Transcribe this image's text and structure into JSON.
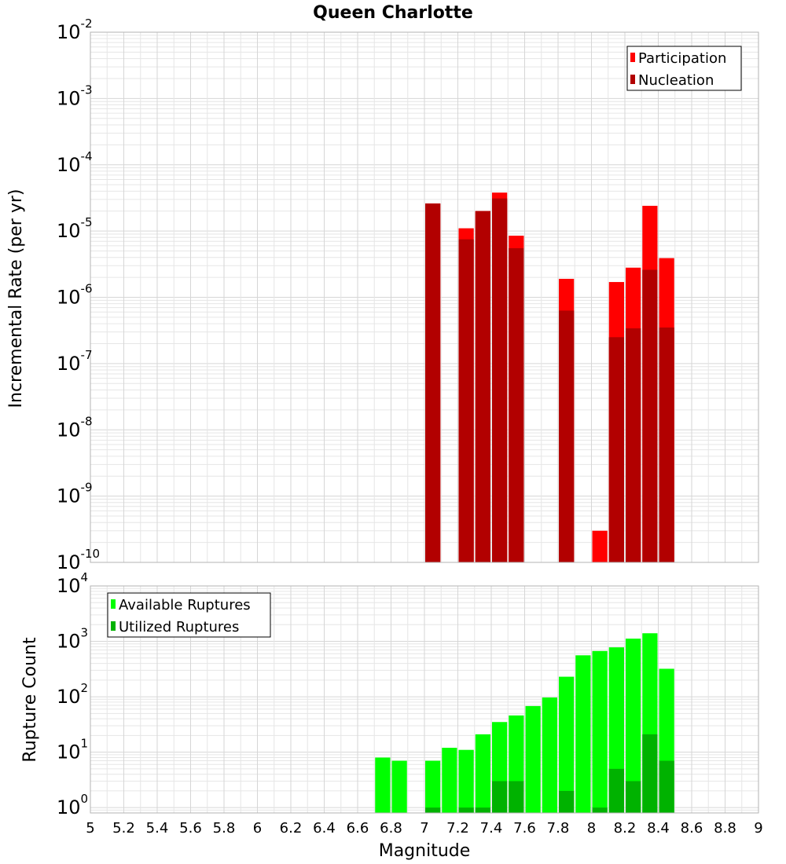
{
  "chart_data": [
    {
      "type": "bar",
      "title": "Queen Charlotte",
      "xlabel": "",
      "ylabel": "Incremental Rate (per yr)",
      "y_scale": "log",
      "ylim": [
        1e-10,
        0.01
      ],
      "xlim": [
        5,
        9
      ],
      "bar_width": 0.1,
      "legend_position": "top-right",
      "y_ticks": [
        {
          "base": "10",
          "exp": "-10"
        },
        {
          "base": "10",
          "exp": "-9"
        },
        {
          "base": "10",
          "exp": "-8"
        },
        {
          "base": "10",
          "exp": "-7"
        },
        {
          "base": "10",
          "exp": "-6"
        },
        {
          "base": "10",
          "exp": "-5"
        },
        {
          "base": "10",
          "exp": "-4"
        },
        {
          "base": "10",
          "exp": "-3"
        },
        {
          "base": "10",
          "exp": "-2"
        }
      ],
      "series": [
        {
          "name": "Participation",
          "color": "#ff0000",
          "points": [
            {
              "x": 7.05,
              "y": 2.6e-05
            },
            {
              "x": 7.25,
              "y": 1.1e-05
            },
            {
              "x": 7.35,
              "y": 2e-05
            },
            {
              "x": 7.45,
              "y": 3.8e-05
            },
            {
              "x": 7.55,
              "y": 8.5e-06
            },
            {
              "x": 7.85,
              "y": 1.9e-06
            },
            {
              "x": 8.05,
              "y": 3e-10
            },
            {
              "x": 8.15,
              "y": 1.7e-06
            },
            {
              "x": 8.25,
              "y": 2.8e-06
            },
            {
              "x": 8.35,
              "y": 2.4e-05
            },
            {
              "x": 8.45,
              "y": 3.9e-06
            }
          ]
        },
        {
          "name": "Nucleation",
          "color": "#b20000",
          "points": [
            {
              "x": 7.05,
              "y": 2.6e-05
            },
            {
              "x": 7.25,
              "y": 7.5e-06
            },
            {
              "x": 7.35,
              "y": 2e-05
            },
            {
              "x": 7.45,
              "y": 3.1e-05
            },
            {
              "x": 7.55,
              "y": 5.5e-06
            },
            {
              "x": 7.85,
              "y": 6.3e-07
            },
            {
              "x": 8.15,
              "y": 2.5e-07
            },
            {
              "x": 8.25,
              "y": 3.4e-07
            },
            {
              "x": 8.35,
              "y": 2.6e-06
            },
            {
              "x": 8.45,
              "y": 3.5e-07
            }
          ]
        }
      ]
    },
    {
      "type": "bar",
      "title": "",
      "xlabel": "Magnitude",
      "ylabel": "Rupture Count",
      "y_scale": "log",
      "ylim": [
        0.8,
        10000
      ],
      "xlim": [
        5,
        9
      ],
      "bar_width": 0.1,
      "legend_position": "top-left",
      "x_ticks": [
        "5",
        "5.2",
        "5.4",
        "5.6",
        "5.8",
        "6",
        "6.2",
        "6.4",
        "6.6",
        "6.8",
        "7",
        "7.2",
        "7.4",
        "7.6",
        "7.8",
        "8",
        "8.2",
        "8.4",
        "8.6",
        "8.8",
        "9"
      ],
      "y_ticks": [
        {
          "base": "10",
          "exp": "0"
        },
        {
          "base": "10",
          "exp": "1"
        },
        {
          "base": "10",
          "exp": "2"
        },
        {
          "base": "10",
          "exp": "3"
        },
        {
          "base": "10",
          "exp": "4"
        }
      ],
      "series": [
        {
          "name": "Available Ruptures",
          "color": "#00ff00",
          "points": [
            {
              "x": 6.75,
              "y": 8
            },
            {
              "x": 6.85,
              "y": 7
            },
            {
              "x": 7.05,
              "y": 7
            },
            {
              "x": 7.15,
              "y": 12
            },
            {
              "x": 7.25,
              "y": 11
            },
            {
              "x": 7.35,
              "y": 21
            },
            {
              "x": 7.45,
              "y": 35
            },
            {
              "x": 7.55,
              "y": 46
            },
            {
              "x": 7.65,
              "y": 68
            },
            {
              "x": 7.75,
              "y": 97
            },
            {
              "x": 7.85,
              "y": 230
            },
            {
              "x": 7.95,
              "y": 560
            },
            {
              "x": 8.05,
              "y": 670
            },
            {
              "x": 8.15,
              "y": 780
            },
            {
              "x": 8.25,
              "y": 1120
            },
            {
              "x": 8.35,
              "y": 1400
            },
            {
              "x": 8.45,
              "y": 320
            }
          ]
        },
        {
          "name": "Utilized Ruptures",
          "color": "#00b200",
          "points": [
            {
              "x": 7.05,
              "y": 1
            },
            {
              "x": 7.25,
              "y": 1
            },
            {
              "x": 7.35,
              "y": 1
            },
            {
              "x": 7.45,
              "y": 3
            },
            {
              "x": 7.55,
              "y": 3
            },
            {
              "x": 7.85,
              "y": 2
            },
            {
              "x": 8.05,
              "y": 1
            },
            {
              "x": 8.15,
              "y": 5
            },
            {
              "x": 8.25,
              "y": 3
            },
            {
              "x": 8.35,
              "y": 21
            },
            {
              "x": 8.45,
              "y": 7
            }
          ]
        }
      ]
    }
  ]
}
